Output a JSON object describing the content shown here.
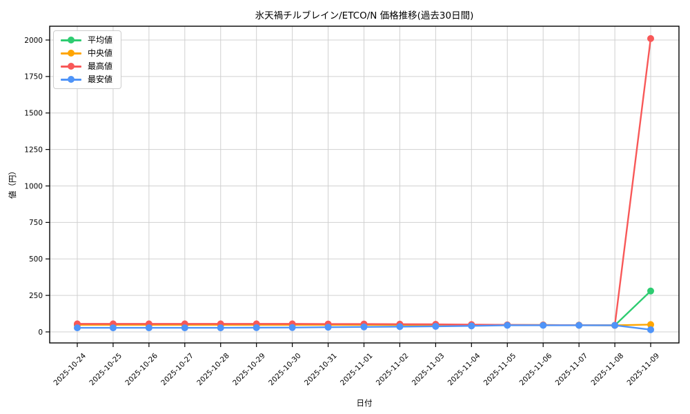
{
  "chart_data": {
    "type": "line",
    "title": "氷天禍チルブレイン/ETCO/N 価格推移(過去30日間)",
    "xlabel": "日付",
    "ylabel": "値（円）",
    "ylim": [
      0,
      2000
    ],
    "y_ticks": [
      0,
      250,
      500,
      750,
      1000,
      1250,
      1500,
      1750,
      2000
    ],
    "grid": true,
    "legend_position": "upper-left",
    "categories": [
      "2025-10-24",
      "2025-10-25",
      "2025-10-26",
      "2025-10-27",
      "2025-10-28",
      "2025-10-29",
      "2025-10-30",
      "2025-10-31",
      "2025-11-01",
      "2025-11-02",
      "2025-11-03",
      "2025-11-04",
      "2025-11-05",
      "2025-11-06",
      "2025-11-07",
      "2025-11-08",
      "2025-11-09"
    ],
    "series": [
      {
        "name": "平均値",
        "color": "#2ecc71",
        "values": [
          48,
          48,
          48,
          48,
          48,
          48,
          48,
          48,
          48,
          48,
          48,
          48,
          47,
          47,
          46,
          45,
          280
        ]
      },
      {
        "name": "中央値",
        "color": "#ffa500",
        "values": [
          48,
          48,
          48,
          48,
          48,
          48,
          48,
          48,
          48,
          48,
          48,
          48,
          47,
          47,
          46,
          45,
          50
        ]
      },
      {
        "name": "最高値",
        "color": "#f85858",
        "values": [
          55,
          55,
          55,
          55,
          55,
          55,
          55,
          54,
          54,
          53,
          52,
          50,
          48,
          47,
          46,
          45,
          2010
        ]
      },
      {
        "name": "最安値",
        "color": "#4f94f8",
        "values": [
          28,
          28,
          28,
          28,
          28,
          29,
          30,
          32,
          34,
          36,
          38,
          41,
          45,
          45,
          45,
          45,
          15
        ]
      }
    ],
    "colors": {
      "grid": "#d0d0d0",
      "spine": "#000000",
      "background": "#ffffff"
    }
  }
}
